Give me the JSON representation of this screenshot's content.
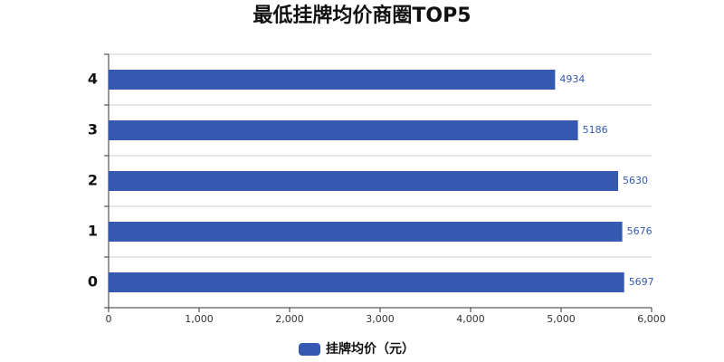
{
  "chart_data": {
    "type": "bar",
    "orientation": "horizontal",
    "title": "最低挂牌均价商圈TOP5",
    "categories": [
      "0",
      "1",
      "2",
      "3",
      "4"
    ],
    "series": [
      {
        "name": "挂牌均价（元）",
        "color": "#3558b0",
        "values": [
          5697,
          5676,
          5630,
          5186,
          4934
        ]
      }
    ],
    "xlim": [
      0,
      6000
    ],
    "xticks": [
      0,
      {
        "value": 1000,
        "label": "1,000"
      },
      {
        "value": 2000,
        "label": "2,000"
      },
      {
        "value": 3000,
        "label": "3,000"
      },
      {
        "value": 4000,
        "label": "4,000"
      },
      {
        "value": 5000,
        "label": "5,000"
      },
      {
        "value": 6000,
        "label": "6,000"
      }
    ],
    "legend": "bottom"
  }
}
